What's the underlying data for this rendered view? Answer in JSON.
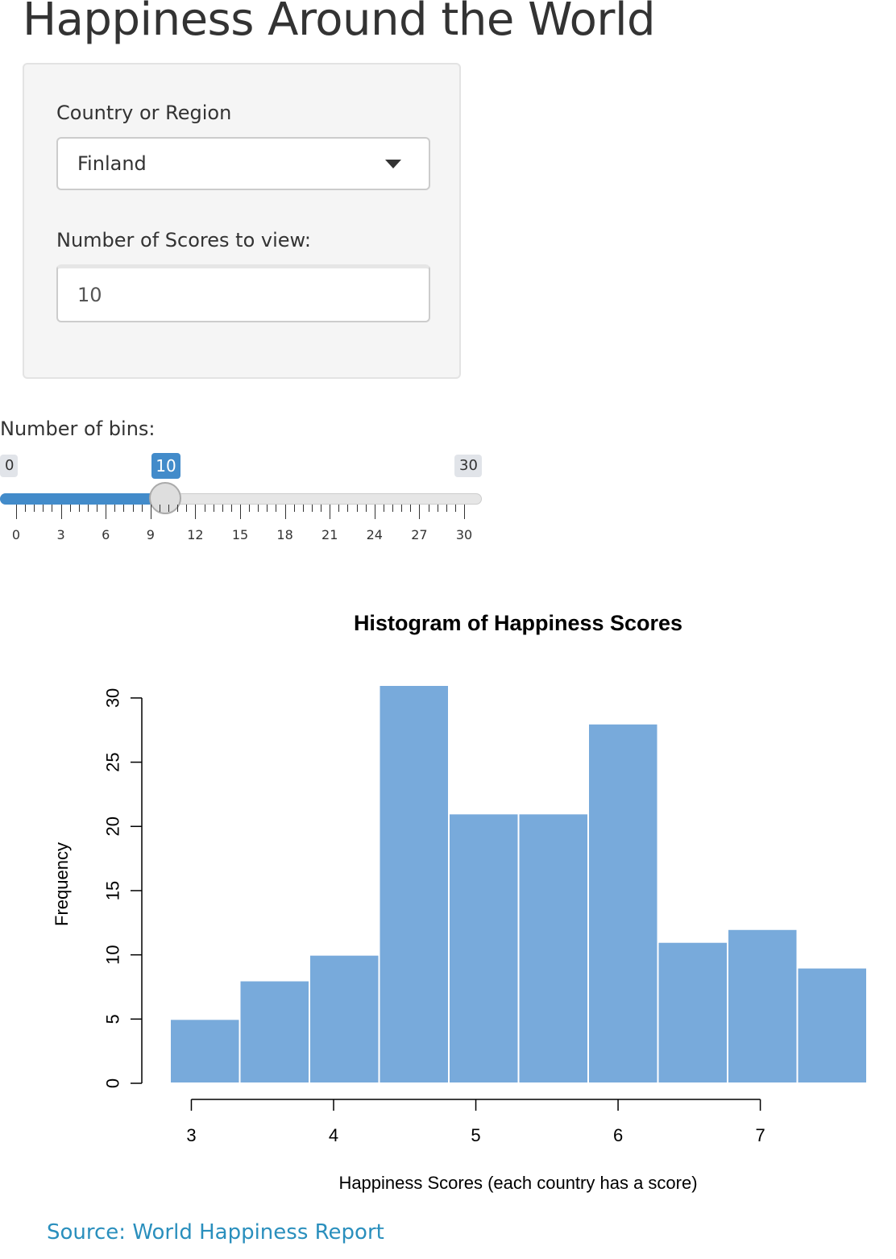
{
  "page": {
    "title": "Happiness Around the World"
  },
  "sidebar": {
    "country_label": "Country or Region",
    "country_selected": "Finland",
    "scores_label": "Number of Scores to view:",
    "scores_value": "10"
  },
  "bins_slider": {
    "label": "Number of bins:",
    "min": 0,
    "max": 30,
    "value": 10,
    "min_label": "0",
    "max_label": "30",
    "value_label": "10",
    "tick_labels": [
      "0",
      "3",
      "6",
      "9",
      "12",
      "15",
      "18",
      "21",
      "24",
      "27",
      "30"
    ],
    "accent_color": "#428bca"
  },
  "chart_data": {
    "type": "bar",
    "title": "Histogram of Happiness Scores",
    "xlabel": "Happiness Scores (each country has a score)",
    "ylabel": "Frequency",
    "bin_edges": [
      2.85,
      3.34,
      3.83,
      4.32,
      4.81,
      5.3,
      5.79,
      6.28,
      6.77,
      7.26,
      7.75
    ],
    "values": [
      5,
      8,
      10,
      31,
      21,
      21,
      28,
      11,
      12,
      9
    ],
    "xticks": [
      3,
      4,
      5,
      6,
      7
    ],
    "yticks": [
      0,
      5,
      10,
      15,
      20,
      25,
      30
    ],
    "xlim": [
      2.85,
      7.75
    ],
    "ylim": [
      0,
      31
    ],
    "bar_color": "#78aadb",
    "grid": false
  },
  "footer": {
    "source_text": "Source: World Happiness Report",
    "link_color": "#2a8fbd"
  }
}
